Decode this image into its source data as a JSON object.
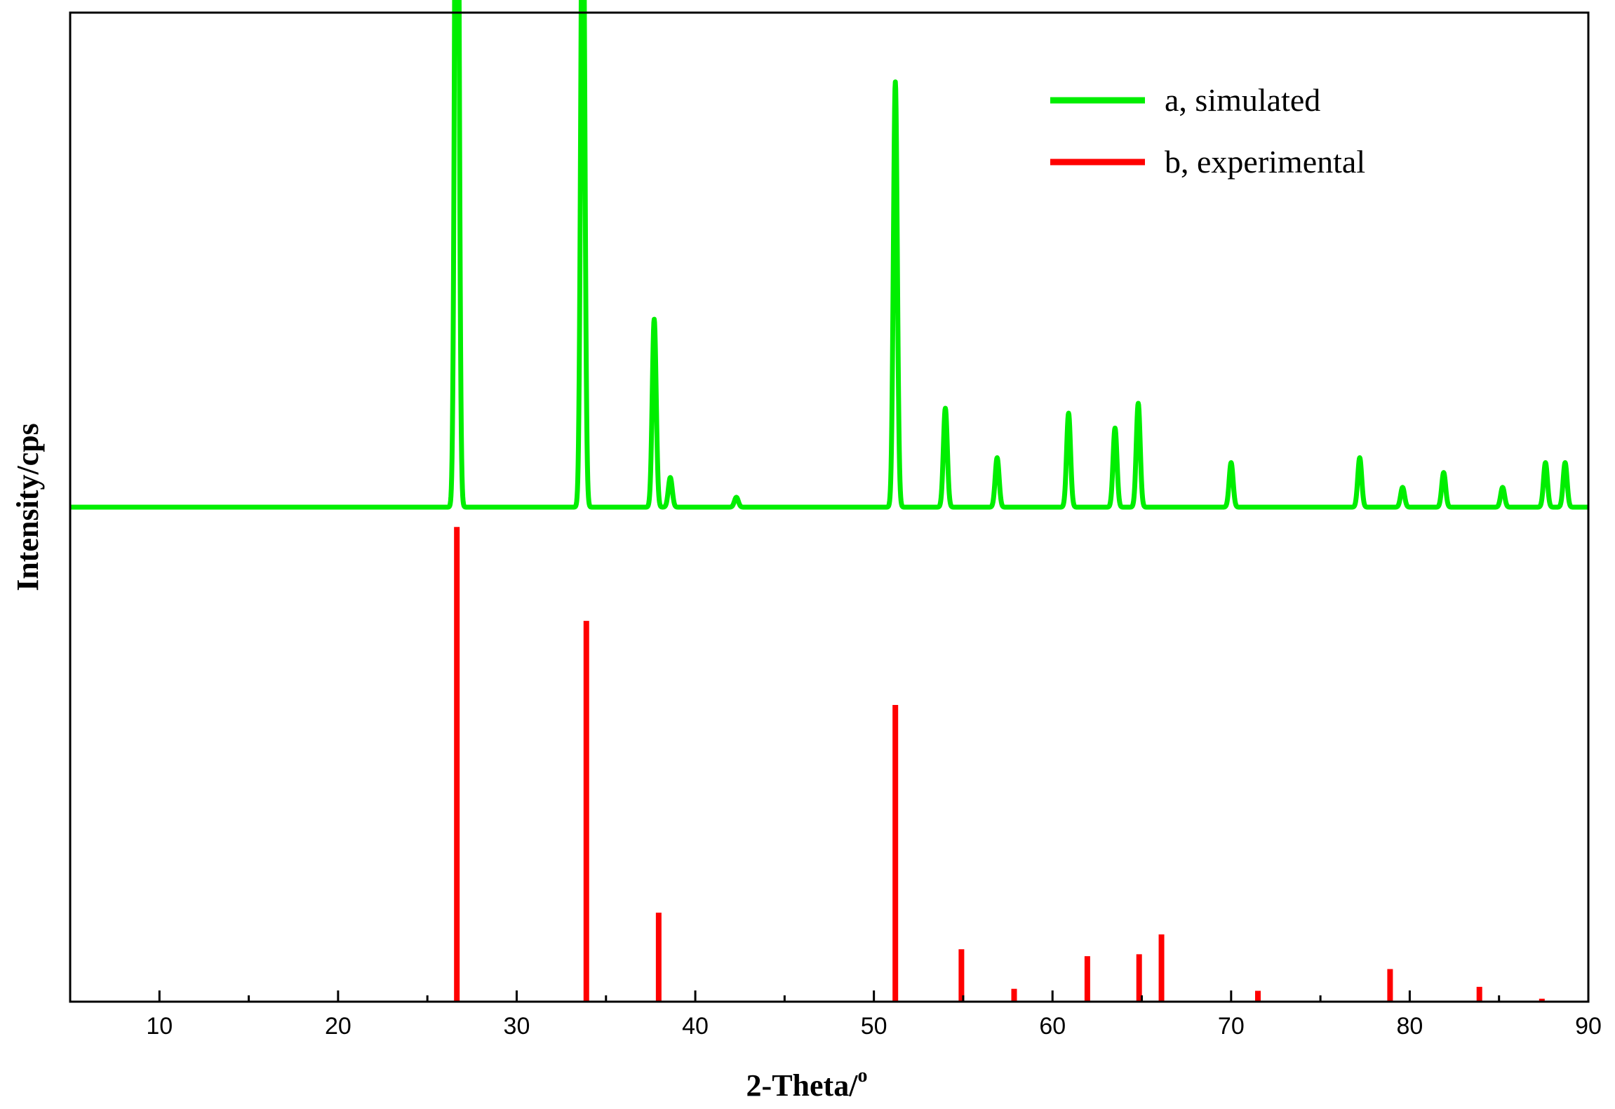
{
  "chart_data": {
    "type": "line",
    "title": "",
    "xlabel": "2-Theta/",
    "xlabel_superscript": "o",
    "ylabel": "Intensity/cps",
    "xlim": [
      5,
      90
    ],
    "ylim": [
      0,
      100
    ],
    "x_ticks": [
      10,
      20,
      30,
      40,
      50,
      60,
      70,
      80,
      90
    ],
    "x_tick_labels": [
      "10",
      "20",
      "30",
      "40",
      "50",
      "60",
      "70",
      "80",
      "90"
    ],
    "y_ticks_visible": false,
    "grid": false,
    "legend_position": "top-right",
    "series": [
      {
        "name": "a, simulated",
        "color": "#00ee00",
        "style": "profile",
        "baseline": 50,
        "peaks": [
          {
            "x": 26.65,
            "y": 100
          },
          {
            "x": 33.7,
            "y": 70
          },
          {
            "x": 37.7,
            "y": 19
          },
          {
            "x": 38.6,
            "y": 3
          },
          {
            "x": 42.3,
            "y": 1
          },
          {
            "x": 51.2,
            "y": 43
          },
          {
            "x": 54.0,
            "y": 10
          },
          {
            "x": 56.9,
            "y": 5
          },
          {
            "x": 60.9,
            "y": 9.5
          },
          {
            "x": 63.5,
            "y": 8
          },
          {
            "x": 64.8,
            "y": 10.5
          },
          {
            "x": 70.0,
            "y": 4.5
          },
          {
            "x": 77.2,
            "y": 5
          },
          {
            "x": 79.6,
            "y": 2
          },
          {
            "x": 81.9,
            "y": 3.5
          },
          {
            "x": 85.2,
            "y": 2
          },
          {
            "x": 87.6,
            "y": 4.5
          },
          {
            "x": 88.7,
            "y": 4.5
          }
        ]
      },
      {
        "name": "b, experimental",
        "color": "#ff0000",
        "style": "sticks",
        "baseline": 0,
        "peaks": [
          {
            "x": 26.65,
            "y": 48
          },
          {
            "x": 33.9,
            "y": 38.5
          },
          {
            "x": 37.95,
            "y": 9
          },
          {
            "x": 51.2,
            "y": 30
          },
          {
            "x": 54.9,
            "y": 5.3
          },
          {
            "x": 57.85,
            "y": 1.3
          },
          {
            "x": 61.95,
            "y": 4.6
          },
          {
            "x": 64.85,
            "y": 4.8
          },
          {
            "x": 66.1,
            "y": 6.8
          },
          {
            "x": 71.5,
            "y": 1.1
          },
          {
            "x": 78.9,
            "y": 3.3
          },
          {
            "x": 83.9,
            "y": 1.5
          },
          {
            "x": 87.4,
            "y": 0.3
          }
        ]
      }
    ]
  }
}
